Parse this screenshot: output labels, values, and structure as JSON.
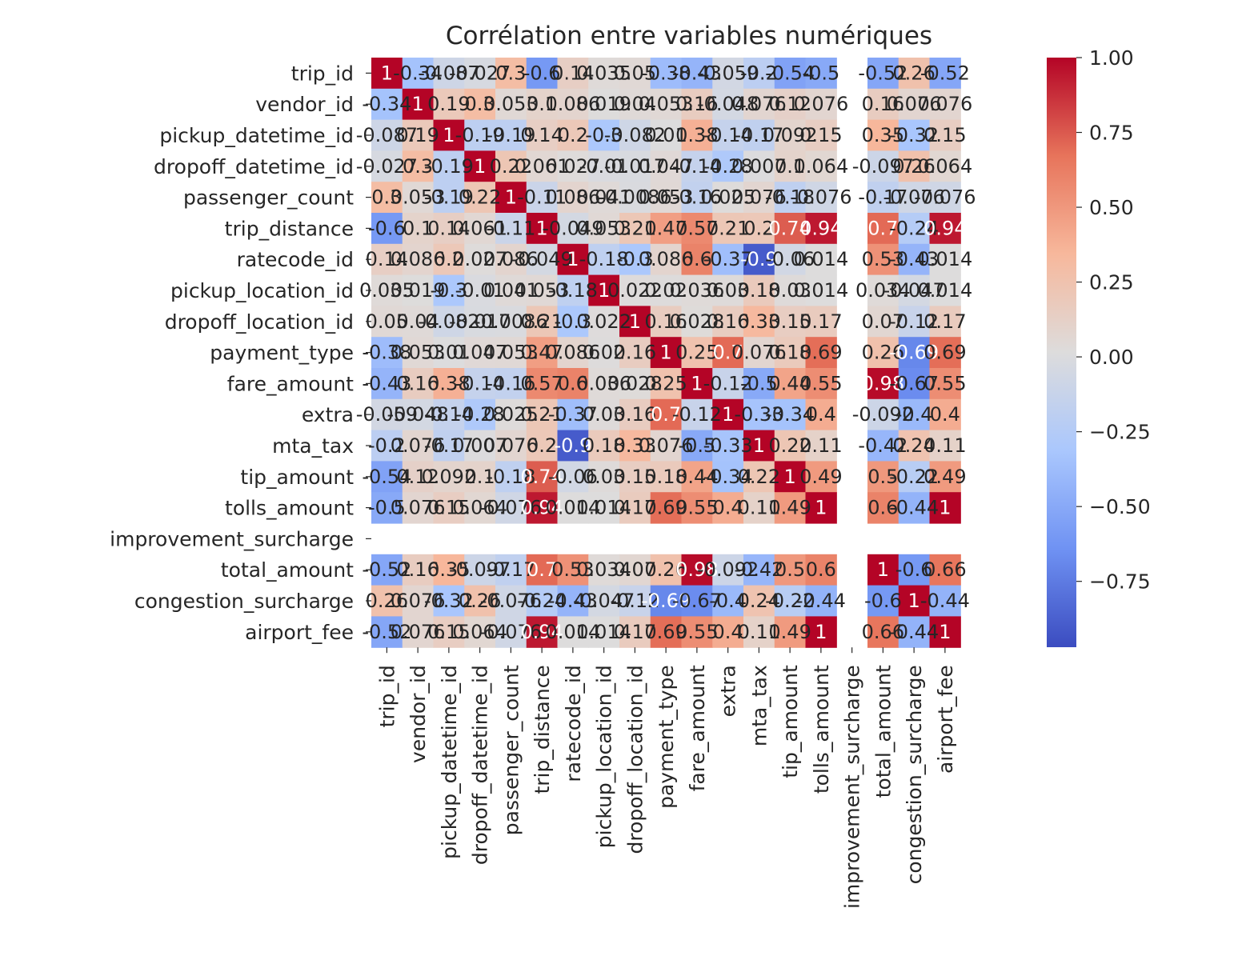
{
  "chart_data": {
    "type": "heatmap",
    "title": "Corrélation entre variables numériques",
    "colormap": "coolwarm",
    "colormap_stops": [
      "#3b4cc0",
      "#6f92f3",
      "#aac7fd",
      "#dddcdc",
      "#f7b89c",
      "#e7745b",
      "#b40426"
    ],
    "vmin": -0.97,
    "vmax": 1.0,
    "nan_color": "#ffffff",
    "show_grid": false,
    "colorbar": {
      "position": "right",
      "ticks": [
        "1.00",
        "0.75",
        "0.50",
        "0.25",
        "0.00",
        "−0.25",
        "−0.50",
        "−0.75"
      ],
      "tick_values": [
        1.0,
        0.75,
        0.5,
        0.25,
        0.0,
        -0.25,
        -0.5,
        -0.75
      ]
    },
    "rows": [
      "trip_id",
      "vendor_id",
      "pickup_datetime_id",
      "dropoff_datetime_id",
      "passenger_count",
      "trip_distance",
      "ratecode_id",
      "pickup_location_id",
      "dropoff_location_id",
      "payment_type",
      "fare_amount",
      "extra",
      "mta_tax",
      "tip_amount",
      "tolls_amount",
      "improvement_surcharge",
      "total_amount",
      "congestion_surcharge",
      "airport_fee"
    ],
    "columns": [
      "trip_id",
      "vendor_id",
      "pickup_datetime_id",
      "dropoff_datetime_id",
      "passenger_count",
      "trip_distance",
      "ratecode_id",
      "pickup_location_id",
      "dropoff_location_id",
      "payment_type",
      "fare_amount",
      "extra",
      "mta_tax",
      "tip_amount",
      "tolls_amount",
      "improvement_surcharge",
      "total_amount",
      "congestion_surcharge",
      "airport_fee"
    ],
    "values": [
      [
        1,
        -0.34,
        -0.087,
        -0.027,
        0.3,
        -0.6,
        0.14,
        0.035,
        0.05,
        -0.38,
        -0.43,
        -0.059,
        -0.2,
        -0.54,
        -0.5,
        null,
        -0.52,
        0.26,
        -0.52
      ],
      [
        -0.34,
        1,
        0.19,
        0.3,
        0.053,
        0.1,
        0.086,
        0.019,
        0.04,
        0.053,
        0.16,
        -0.048,
        0.076,
        0.12,
        0.076,
        null,
        0.16,
        0.076,
        0.076
      ],
      [
        -0.087,
        0.19,
        1,
        -0.19,
        -0.19,
        0.14,
        0.2,
        -0.3,
        -0.082,
        0.01,
        0.38,
        -0.14,
        -0.17,
        0.092,
        0.15,
        null,
        0.35,
        -0.32,
        0.15
      ],
      [
        -0.027,
        0.3,
        -0.19,
        1,
        0.22,
        0.061,
        0.027,
        -0.01,
        -0.017,
        0.047,
        -0.14,
        -0.28,
        0.007,
        0.1,
        0.064,
        null,
        -0.097,
        0.26,
        0.064
      ],
      [
        0.3,
        0.053,
        -0.19,
        0.22,
        1,
        -0.11,
        0.086,
        0.041,
        -0.0086,
        0.053,
        -0.16,
        0.025,
        0.076,
        -0.18,
        -0.076,
        null,
        -0.17,
        -0.076,
        -0.076
      ],
      [
        -0.6,
        0.1,
        0.14,
        0.061,
        -0.11,
        1,
        -0.049,
        0.053,
        0.21,
        0.47,
        0.57,
        0.21,
        0.2,
        0.74,
        0.94,
        null,
        0.7,
        -0.24,
        0.94
      ],
      [
        0.14,
        0.086,
        0.2,
        0.027,
        0.086,
        -0.049,
        1,
        -0.18,
        -0.3,
        0.086,
        0.6,
        -0.37,
        -0.9,
        -0.06,
        0.014,
        null,
        0.53,
        -0.43,
        0.014
      ],
      [
        0.035,
        0.019,
        -0.3,
        -0.01,
        0.041,
        0.053,
        -0.18,
        1,
        0.022,
        0.02,
        0.036,
        0.03,
        0.18,
        0.03,
        0.014,
        null,
        0.034,
        -0.047,
        0.014
      ],
      [
        0.05,
        0.04,
        -0.082,
        -0.017,
        -0.0086,
        0.21,
        -0.3,
        0.022,
        1,
        0.16,
        0.028,
        0.16,
        0.33,
        0.15,
        0.17,
        null,
        0.07,
        -0.12,
        0.17
      ],
      [
        -0.38,
        0.053,
        0.01,
        0.047,
        0.053,
        0.47,
        0.086,
        0.02,
        0.16,
        1,
        0.25,
        0.7,
        0.076,
        0.18,
        0.69,
        null,
        0.26,
        -0.69,
        0.69
      ],
      [
        -0.43,
        0.16,
        0.38,
        -0.14,
        -0.16,
        0.57,
        0.6,
        0.036,
        0.028,
        0.25,
        1,
        -0.12,
        -0.5,
        0.44,
        0.55,
        null,
        0.98,
        -0.67,
        0.55
      ],
      [
        -0.059,
        -0.048,
        -0.14,
        -0.28,
        0.025,
        0.21,
        -0.37,
        0.03,
        0.16,
        0.7,
        -0.12,
        1,
        -0.33,
        -0.34,
        0.4,
        null,
        -0.092,
        -0.4,
        0.4
      ],
      [
        -0.2,
        0.076,
        -0.17,
        0.007,
        0.076,
        0.2,
        -0.9,
        0.18,
        0.33,
        0.076,
        -0.5,
        -0.33,
        1,
        0.22,
        0.11,
        null,
        -0.42,
        0.24,
        0.11
      ],
      [
        -0.54,
        0.12,
        0.092,
        0.1,
        -0.18,
        0.74,
        -0.06,
        0.03,
        0.15,
        0.18,
        0.44,
        -0.34,
        0.22,
        1,
        0.49,
        null,
        0.5,
        -0.22,
        0.49
      ],
      [
        -0.5,
        0.076,
        0.15,
        0.064,
        -0.076,
        0.94,
        0.014,
        0.014,
        0.17,
        0.69,
        0.55,
        0.4,
        0.11,
        0.49,
        1,
        null,
        0.6,
        -0.44,
        1
      ],
      [
        null,
        null,
        null,
        null,
        null,
        null,
        null,
        null,
        null,
        null,
        null,
        null,
        null,
        null,
        null,
        null,
        null,
        null,
        null
      ],
      [
        -0.52,
        0.16,
        0.35,
        -0.097,
        -0.17,
        0.7,
        0.53,
        0.034,
        0.07,
        0.26,
        0.98,
        -0.092,
        -0.42,
        0.5,
        0.6,
        null,
        1,
        -0.6,
        0.66
      ],
      [
        0.26,
        0.076,
        -0.32,
        0.26,
        -0.076,
        -0.24,
        -0.43,
        -0.047,
        -0.12,
        -0.69,
        -0.67,
        -0.4,
        0.24,
        -0.22,
        -0.44,
        null,
        -0.6,
        1,
        -0.44
      ],
      [
        -0.52,
        0.076,
        0.15,
        0.064,
        -0.076,
        0.94,
        0.014,
        0.014,
        0.17,
        0.69,
        0.55,
        0.4,
        0.11,
        0.49,
        1,
        null,
        0.66,
        -0.44,
        1
      ]
    ],
    "annotations": [
      [
        "1",
        "-0.34",
        "-0.087",
        "-0.027",
        "0.3",
        "-0.6",
        "0.14",
        "0.035",
        "0.05",
        "-0.38",
        "-0.43",
        "-0.059",
        "-0.2",
        "-0.54",
        "-0.5",
        "",
        "-0.52",
        "0.26",
        "-0.52"
      ],
      [
        "-0.34",
        "1",
        "0.19",
        "0.3",
        "0.053",
        "0.1",
        "0.086",
        "0.019",
        "0.04",
        "0.053",
        "0.16",
        "-0.048",
        "0.076",
        "0.12",
        "0.076",
        "",
        "0.16",
        "0.076",
        "0.076"
      ],
      [
        "-0.087",
        "0.19",
        "1",
        "-0.19",
        "-0.19",
        "0.14",
        "0.2",
        "-0.3",
        "-0.082",
        "0.01",
        "0.38",
        "-0.14",
        "-0.17",
        "0.092",
        "0.15",
        "",
        "0.35",
        "-0.32",
        "0.15"
      ],
      [
        "-0.027",
        "0.3",
        "-0.19",
        "1",
        "0.22",
        "0.061",
        "0.027",
        "-0.01",
        "-0.017",
        "0.047",
        "-0.14",
        "-0.28",
        "0.007",
        "0.1",
        "0.064",
        "",
        "-0.097",
        "0.26",
        "0.064"
      ],
      [
        "0.3",
        "0.053",
        "-0.19",
        "0.22",
        "1",
        "-0.11",
        "0.086",
        "0.041",
        "-0.0086",
        "0.053",
        "-0.16",
        "0.025",
        "0.076",
        "-0.18",
        "-0.076",
        "",
        "-0.17",
        "-0.076",
        "-0.076"
      ],
      [
        "-0.6",
        "0.1",
        "0.14",
        "0.061",
        "-0.11",
        "1",
        "-0.049",
        "0.053",
        "0.21",
        "0.47",
        "0.57",
        "0.21",
        "0.2",
        "0.74",
        "0.94",
        "",
        "0.7",
        "-0.24",
        "0.94"
      ],
      [
        "0.14",
        "0.086",
        "0.2",
        "0.027",
        "0.086",
        "-0.049",
        "1",
        "-0.18",
        "-0.3",
        "0.086",
        "0.6",
        "-0.37",
        "-0.9",
        "-0.06",
        "0.014",
        "",
        "0.53",
        "-0.43",
        "0.014"
      ],
      [
        "0.035",
        "0.019",
        "-0.3",
        "-0.01",
        "0.041",
        "0.053",
        "-0.18",
        "1",
        "0.022",
        "0.02",
        "0.036",
        "0.03",
        "0.18",
        "0.03",
        "0.014",
        "",
        "0.034",
        "-0.047",
        "0.014"
      ],
      [
        "0.05",
        "0.04",
        "-0.082",
        "-0.017",
        "-0.0086",
        "0.21",
        "-0.3",
        "0.022",
        "1",
        "0.16",
        "0.028",
        "0.16",
        "0.33",
        "0.15",
        "0.17",
        "",
        "0.07",
        "-0.12",
        "0.17"
      ],
      [
        "-0.38",
        "0.053",
        "0.01",
        "0.047",
        "0.053",
        "0.47",
        "0.086",
        "0.02",
        "0.16",
        "1",
        "0.25",
        "0.7",
        "0.076",
        "0.18",
        "0.69",
        "",
        "0.26",
        "-0.69",
        "0.69"
      ],
      [
        "-0.43",
        "0.16",
        "0.38",
        "-0.14",
        "-0.16",
        "0.57",
        "0.6",
        "0.036",
        "0.028",
        "0.25",
        "1",
        "-0.12",
        "-0.5",
        "0.44",
        "0.55",
        "",
        "0.98",
        "-0.67",
        "0.55"
      ],
      [
        "-0.059",
        "-0.048",
        "-0.14",
        "-0.28",
        "0.025",
        "0.21",
        "-0.37",
        "0.03",
        "0.16",
        "0.7",
        "-0.12",
        "1",
        "-0.33",
        "-0.34",
        "0.4",
        "",
        "-0.092",
        "-0.4",
        "0.4"
      ],
      [
        "-0.2",
        "0.076",
        "-0.17",
        "0.007",
        "0.076",
        "0.2",
        "-0.9",
        "0.18",
        "0.33",
        "0.076",
        "-0.5",
        "-0.33",
        "1",
        "0.22",
        "0.11",
        "",
        "-0.42",
        "0.24",
        "0.11"
      ],
      [
        "-0.54",
        "0.12",
        "0.092",
        "0.1",
        "-0.18",
        "0.74",
        "-0.06",
        "0.03",
        "0.15",
        "0.18",
        "0.44",
        "-0.34",
        "0.22",
        "1",
        "0.49",
        "",
        "0.5",
        "-0.22",
        "0.49"
      ],
      [
        "-0.5",
        "0.076",
        "0.15",
        "0.064",
        "-0.076",
        "0.94",
        "0.014",
        "0.014",
        "0.17",
        "0.69",
        "0.55",
        "0.4",
        "0.11",
        "0.49",
        "1",
        "",
        "0.6",
        "-0.44",
        "1"
      ],
      [
        "",
        "",
        "",
        "",
        "",
        "",
        "",
        "",
        "",
        "",
        "",
        "",
        "",
        "",
        "",
        "",
        "",
        "",
        ""
      ],
      [
        "-0.52",
        "0.16",
        "0.35",
        "-0.097",
        "-0.17",
        "0.7",
        "0.53",
        "0.034",
        "0.07",
        "0.26",
        "0.98",
        "-0.092",
        "-0.42",
        "0.5",
        "0.6",
        "",
        "1",
        "-0.6",
        "0.66"
      ],
      [
        "0.26",
        "0.076",
        "-0.32",
        "0.26",
        "-0.076",
        "-0.24",
        "-0.43",
        "-0.047",
        "-0.12",
        "-0.69",
        "-0.67",
        "-0.4",
        "0.24",
        "-0.22",
        "-0.44",
        "",
        "-0.6",
        "1",
        "-0.44"
      ],
      [
        "-0.52",
        "0.076",
        "0.15",
        "0.064",
        "-0.076",
        "0.94",
        "0.014",
        "0.014",
        "0.17",
        "0.69",
        "0.55",
        "0.4",
        "0.11",
        "0.49",
        "1",
        "",
        "0.66",
        "-0.44",
        "1"
      ]
    ]
  }
}
